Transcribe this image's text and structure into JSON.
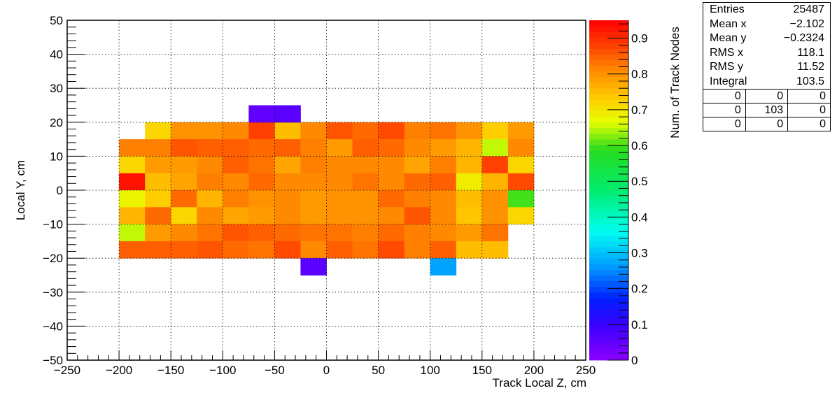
{
  "chart_data": {
    "type": "heatmap",
    "title": "",
    "xlabel": "Track Local Z, cm",
    "ylabel": "Local Y, cm",
    "zlabel": "Num. of Track Nodes",
    "xlim": [
      -250,
      250
    ],
    "ylim": [
      -50,
      50
    ],
    "zlim": [
      0,
      0.95
    ],
    "x_ticks": [
      "−250",
      "−200",
      "−150",
      "−100",
      "−50",
      "0",
      "50",
      "100",
      "150",
      "200",
      "250"
    ],
    "y_ticks": [
      "−50",
      "−40",
      "−30",
      "−20",
      "−10",
      "0",
      "10",
      "20",
      "30",
      "40",
      "50"
    ],
    "z_ticks": [
      "0",
      "0.1",
      "0.2",
      "0.3",
      "0.4",
      "0.5",
      "0.6",
      "0.7",
      "0.8",
      "0.9"
    ],
    "grid": true,
    "bin_width_x": 25,
    "bin_height_y": 5,
    "x_bin_edges_start": [
      -200,
      -175,
      -150,
      -125,
      -100,
      -75,
      -50,
      -25,
      0,
      25,
      50,
      75,
      100,
      125,
      150,
      175
    ],
    "y_rows": [
      {
        "y": 20,
        "values": [
          null,
          0.72,
          0.8,
          0.8,
          0.81,
          0.88,
          0.75,
          0.81,
          0.86,
          0.84,
          0.87,
          0.82,
          0.83,
          0.8,
          0.73,
          0.79
        ]
      },
      {
        "y": 15,
        "values": [
          0.82,
          0.82,
          0.86,
          0.85,
          0.85,
          0.84,
          0.85,
          0.82,
          0.79,
          0.85,
          0.84,
          0.81,
          0.79,
          0.76,
          0.65,
          0.81
        ]
      },
      {
        "y": 10,
        "values": [
          0.72,
          0.79,
          0.79,
          0.81,
          0.85,
          0.83,
          0.78,
          0.82,
          0.81,
          0.81,
          0.81,
          0.78,
          0.82,
          0.76,
          0.88,
          0.72
        ]
      },
      {
        "y": 5,
        "values": [
          0.93,
          0.75,
          0.78,
          0.82,
          0.81,
          0.84,
          0.81,
          0.81,
          0.81,
          0.83,
          0.81,
          0.84,
          0.85,
          0.69,
          0.76,
          0.87
        ]
      },
      {
        "y": 0,
        "values": [
          0.68,
          0.73,
          0.84,
          0.76,
          0.82,
          0.8,
          0.81,
          0.79,
          0.8,
          0.8,
          0.84,
          0.82,
          0.81,
          0.75,
          0.8,
          0.6
        ]
      },
      {
        "y": -5,
        "values": [
          0.76,
          0.84,
          0.72,
          0.81,
          0.78,
          0.79,
          0.81,
          0.79,
          0.8,
          0.8,
          0.81,
          0.86,
          0.81,
          0.74,
          0.8,
          0.72
        ]
      },
      {
        "y": -10,
        "values": [
          0.65,
          0.79,
          0.81,
          0.83,
          0.86,
          0.85,
          0.84,
          0.83,
          0.83,
          0.82,
          0.84,
          0.82,
          0.81,
          0.79,
          0.83,
          null
        ]
      },
      {
        "y": -15,
        "values": [
          0.85,
          0.85,
          0.85,
          0.86,
          0.84,
          0.83,
          0.87,
          0.81,
          0.85,
          0.83,
          0.87,
          0.82,
          0.85,
          0.75,
          0.75,
          null
        ]
      },
      {
        "y": 25,
        "values": [
          null,
          null,
          null,
          null,
          null,
          0.05,
          0.06,
          null,
          null,
          null,
          null,
          null,
          null,
          null,
          null,
          null
        ]
      },
      {
        "y": -20,
        "values": [
          null,
          null,
          null,
          null,
          null,
          null,
          null,
          0.06,
          null,
          null,
          null,
          null,
          0.27,
          null,
          null,
          null
        ]
      }
    ]
  },
  "stats": {
    "rows": [
      {
        "label": "Entries",
        "value": "25487"
      },
      {
        "label": "Mean x",
        "value": "−2.102"
      },
      {
        "label": "Mean y",
        "value": "−0.2324"
      },
      {
        "label": "RMS x",
        "value": "118.1"
      },
      {
        "label": "RMS y",
        "value": "11.52"
      },
      {
        "label": "Integral",
        "value": "103.5"
      }
    ],
    "grid": [
      [
        "0",
        "0",
        "0"
      ],
      [
        "0",
        "103",
        "0"
      ],
      [
        "0",
        "0",
        "0"
      ]
    ]
  }
}
